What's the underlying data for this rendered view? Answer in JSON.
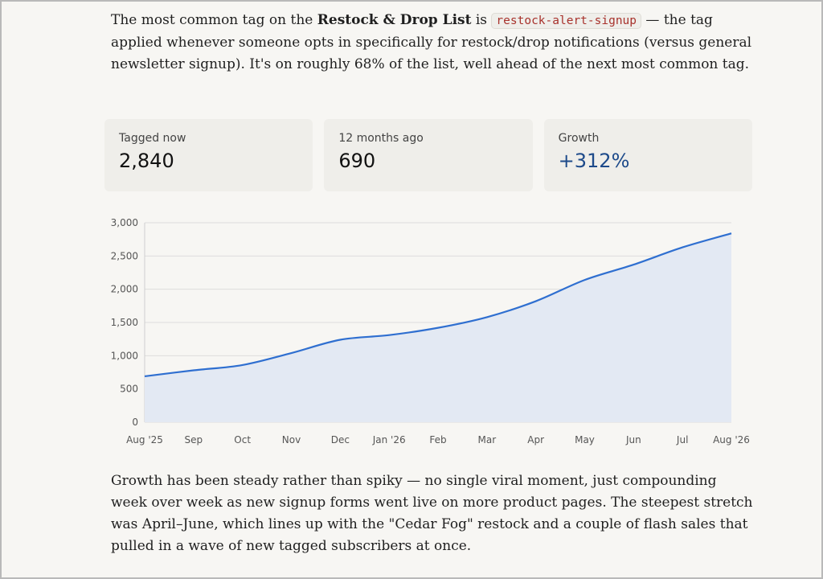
{
  "intro": {
    "prefix": "The most common tag on the ",
    "list_name": "Restock & Drop List",
    "is": " is ",
    "tag": "restock-alert-signup",
    "suffix": " — the tag applied whenever someone opts in specifically for restock/drop notifications (versus general newsletter signup). It's on roughly 68% of the list, well ahead of the next most common tag."
  },
  "stats": [
    {
      "label": "Tagged now",
      "value": "2,840"
    },
    {
      "label": "12 months ago",
      "value": "690"
    },
    {
      "label": "Growth",
      "value": "+312%"
    }
  ],
  "chart_data": {
    "type": "area",
    "title": "",
    "xlabel": "",
    "ylabel": "",
    "x": [
      "Aug '25",
      "Sep",
      "Oct",
      "Nov",
      "Dec",
      "Jan '26",
      "Feb",
      "Mar",
      "Apr",
      "May",
      "Jun",
      "Jul",
      "Aug '26"
    ],
    "series": [
      {
        "values": [
          690,
          780,
          860,
          1040,
          1240,
          1310,
          1420,
          1580,
          1820,
          2140,
          2370,
          2630,
          2840
        ]
      }
    ],
    "yticks": [
      "0",
      "500",
      "1,000",
      "1,500",
      "2,000",
      "2,500",
      "3,000"
    ],
    "ylim": [
      0,
      3000
    ],
    "grid": true,
    "legend": "none",
    "line_color": "#2f6fd0",
    "fill_color": "#e3e9f3"
  },
  "closing": "Growth has been steady rather than spiky — no single viral moment, just compounding week over week as new signup forms went live on more product pages. The steepest stretch was April–June, which lines up with the \"Cedar Fog\" restock and a couple of flash sales that pulled in a wave of new tagged subscribers at once."
}
